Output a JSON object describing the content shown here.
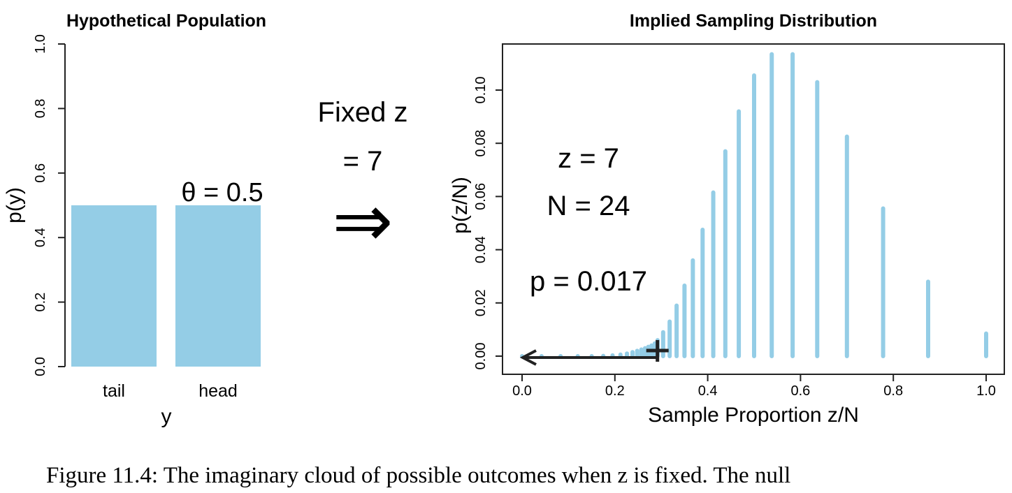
{
  "chart_data": [
    {
      "type": "bar",
      "title": "Hypothetical Population",
      "xlabel": "y",
      "ylabel": "p(y)",
      "categories": [
        "tail",
        "head"
      ],
      "values": [
        0.5,
        0.5
      ],
      "ylim": [
        0,
        1
      ],
      "yticks": [
        "0.0",
        "0.2",
        "0.4",
        "0.6",
        "0.8",
        "1.0"
      ],
      "annotation": "θ = 0.5",
      "color": "#94cde6"
    },
    {
      "type": "bar",
      "subtype": "spike",
      "title": "Implied Sampling Distribution",
      "xlabel": "Sample Proportion z/N",
      "ylabel": "p(z/N)",
      "xlim": [
        0,
        1
      ],
      "ylim": [
        0,
        0.115
      ],
      "xticks": [
        "0.0",
        "0.2",
        "0.4",
        "0.6",
        "0.8",
        "1.0"
      ],
      "yticks": [
        "0.00",
        "0.02",
        "0.04",
        "0.06",
        "0.08",
        "0.10"
      ],
      "x": [
        0.0,
        0.042,
        0.083,
        0.12,
        0.15,
        0.175,
        0.195,
        0.212,
        0.226,
        0.238,
        0.248,
        0.257,
        0.265,
        0.272,
        0.279,
        0.286,
        0.292,
        0.304,
        0.318,
        0.333,
        0.35,
        0.368,
        0.389,
        0.412,
        0.438,
        0.467,
        0.5,
        0.538,
        0.583,
        0.636,
        0.7,
        0.778,
        0.875,
        1.0
      ],
      "y": [
        0.0,
        0.0,
        0.0,
        0.0,
        0.0,
        0.0001,
        0.0003,
        0.0006,
        0.001,
        0.0015,
        0.002,
        0.0025,
        0.003,
        0.0035,
        0.004,
        0.0048,
        0.006,
        0.009,
        0.013,
        0.019,
        0.0265,
        0.036,
        0.0475,
        0.0615,
        0.077,
        0.092,
        0.1055,
        0.1135,
        0.1135,
        0.103,
        0.0825,
        0.0555,
        0.028,
        0.0085
      ],
      "color": "#94cde6",
      "annotations": {
        "z": "z = 7",
        "n": "N = 24",
        "p": "p = 0.017"
      },
      "observed_x": 0.2917
    }
  ],
  "middle": {
    "label_line1": "Fixed z",
    "label_line2": "= 7",
    "arrow": "⇒"
  },
  "caption": "Figure 11.4: The imaginary cloud of possible outcomes when z is fixed. The null"
}
